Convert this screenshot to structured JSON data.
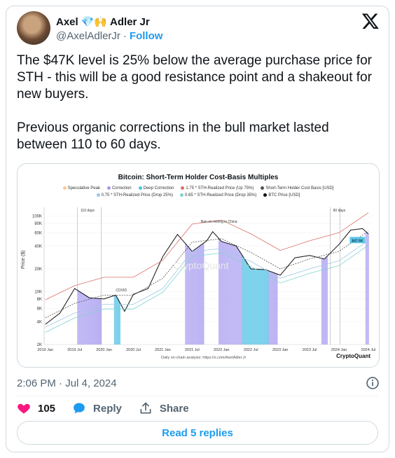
{
  "author": {
    "name_first": "Axel",
    "name_emojis": "💎🙌",
    "name_last": "Adler Jr",
    "handle": "@AxelAdlerJr",
    "separator": "·",
    "follow_label": "Follow"
  },
  "tweet": {
    "text": "The $47K level is 25% below the average purchase price for STH - this will be a good resistance point and a shakeout for new buyers.\n\nPrevious organic corrections in the bull market lasted between 110 to 60 days."
  },
  "chart_data": {
    "type": "line",
    "title": "Bitcoin: Short-Term Holder Cost-Basis Multiples",
    "legend": [
      {
        "label": "Speculative Peak",
        "color": "#f6c99a"
      },
      {
        "label": "Correction",
        "color": "#a59bf0"
      },
      {
        "label": "Deep Correction",
        "color": "#4dc3e6"
      },
      {
        "label": "1.75 * STH-Realized Price (Up 75%)",
        "color": "#d9706a"
      },
      {
        "label": "Short-Term Holder Cost Basis [USD]",
        "color": "#555555"
      },
      {
        "label": "0.75 * STH-Realized Price (Drop 25%)",
        "color": "#9ec9e6"
      },
      {
        "label": "0.65 * STH-Realized Price (Drop 35%)",
        "color": "#7fd3d3"
      },
      {
        "label": "BTC Price [USD]",
        "color": "#111111"
      }
    ],
    "ylabel": "Price ($)",
    "y_scale": "log",
    "ylim": [
      2000,
      130000
    ],
    "y_ticks": [
      "2K",
      "4K",
      "6K",
      "8K",
      "10K",
      "20K",
      "40K",
      "60K",
      "80K",
      "100K"
    ],
    "x_ticks": [
      "2019 Jan",
      "2019 Jul",
      "2020 Jan",
      "2020 Jul",
      "2021 Jan",
      "2021 Jul",
      "2022 Jan",
      "2022 Jul",
      "2023 Jan",
      "2023 Jul",
      "2024 Jan",
      "2024 Jul"
    ],
    "annotations": [
      "110 days",
      "COVID",
      "Ban on mining in China",
      "60 days"
    ],
    "current_price_label": "$47.5K",
    "watermark": "CryptoQuant",
    "series": [
      {
        "name": "BTC Price [USD]",
        "color": "#111111",
        "x": [
          2019.0,
          2019.25,
          2019.5,
          2019.75,
          2020.0,
          2020.2,
          2020.35,
          2020.5,
          2020.75,
          2021.0,
          2021.25,
          2021.5,
          2021.75,
          2021.85,
          2022.0,
          2022.25,
          2022.5,
          2022.75,
          2023.0,
          2023.25,
          2023.5,
          2023.75,
          2024.0,
          2024.2,
          2024.4,
          2024.5
        ],
        "y": [
          3700,
          5200,
          11000,
          8300,
          8000,
          9000,
          5500,
          9200,
          11000,
          29000,
          57000,
          34000,
          47000,
          62000,
          46000,
          40000,
          20000,
          19500,
          16500,
          28000,
          30000,
          27000,
          42000,
          65000,
          68000,
          58000
        ]
      },
      {
        "name": "Short-Term Holder Cost Basis [USD]",
        "color": "#555555",
        "x": [
          2019.0,
          2019.5,
          2020.0,
          2020.5,
          2021.0,
          2021.5,
          2022.0,
          2022.5,
          2023.0,
          2023.5,
          2024.0,
          2024.5
        ],
        "y": [
          4500,
          7000,
          9000,
          9000,
          15000,
          45000,
          50000,
          33000,
          20000,
          27000,
          34000,
          63000
        ]
      },
      {
        "name": "1.75 * STH-Realized Price (Up 75%)",
        "color": "#d9706a",
        "x": [
          2019.0,
          2019.5,
          2020.0,
          2020.5,
          2021.0,
          2021.5,
          2022.0,
          2022.5,
          2023.0,
          2023.5,
          2024.0,
          2024.5
        ],
        "y": [
          7800,
          12000,
          15500,
          15500,
          26000,
          78000,
          88000,
          58000,
          35000,
          47000,
          60000,
          110000
        ]
      },
      {
        "name": "0.75 * STH-Realized Price (Drop 25%)",
        "color": "#9ec9e6",
        "x": [
          2019.0,
          2019.5,
          2020.0,
          2020.5,
          2021.0,
          2021.5,
          2022.0,
          2022.5,
          2023.0,
          2023.5,
          2024.0,
          2024.5
        ],
        "y": [
          3400,
          5200,
          6800,
          6800,
          11000,
          34000,
          37000,
          25000,
          15000,
          20000,
          25500,
          47500
        ]
      },
      {
        "name": "0.65 * STH-Realized Price (Drop 35%)",
        "color": "#7fd3d3",
        "x": [
          2019.0,
          2019.5,
          2020.0,
          2020.5,
          2021.0,
          2021.5,
          2022.0,
          2022.5,
          2023.0,
          2023.5,
          2024.0,
          2024.5
        ],
        "y": [
          2900,
          4500,
          5900,
          5900,
          9800,
          29000,
          32500,
          21500,
          13000,
          17500,
          22000,
          41000
        ]
      }
    ],
    "regions": [
      {
        "type": "Correction",
        "start": 2019.55,
        "end": 2019.95
      },
      {
        "type": "Deep Correction",
        "start": 2020.17,
        "end": 2020.27
      },
      {
        "type": "Correction",
        "start": 2021.38,
        "end": 2021.7
      },
      {
        "type": "Correction",
        "start": 2021.95,
        "end": 2022.35
      },
      {
        "type": "Deep Correction",
        "start": 2022.35,
        "end": 2022.8
      },
      {
        "type": "Correction",
        "start": 2022.8,
        "end": 2022.95
      },
      {
        "type": "Correction",
        "start": 2023.7,
        "end": 2023.8
      },
      {
        "type": "Correction",
        "start": 2024.45,
        "end": 2024.5
      }
    ],
    "footnote": "Daily on-chain analysis: https://x.com/AxelAdler.Jr"
  },
  "meta": {
    "timestamp": "2:06 PM · Jul 4, 2024"
  },
  "actions": {
    "likes": "105",
    "reply_label": "Reply",
    "share_label": "Share",
    "read_replies_label": "Read 5 replies"
  }
}
